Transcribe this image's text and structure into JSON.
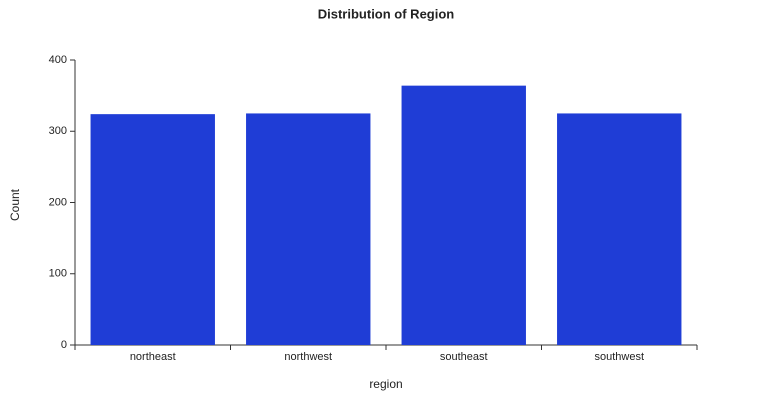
{
  "chart_data": {
    "type": "bar",
    "title": "Distribution of Region",
    "x_label": "region",
    "y_label": "Count",
    "categories": [
      "northeast",
      "northwest",
      "southeast",
      "southwest"
    ],
    "values": [
      324,
      325,
      364,
      325
    ],
    "color": "#1f3dd6",
    "ylim": [
      0,
      400
    ],
    "yticks": [
      0,
      100,
      200,
      300,
      400
    ],
    "grid": false
  }
}
